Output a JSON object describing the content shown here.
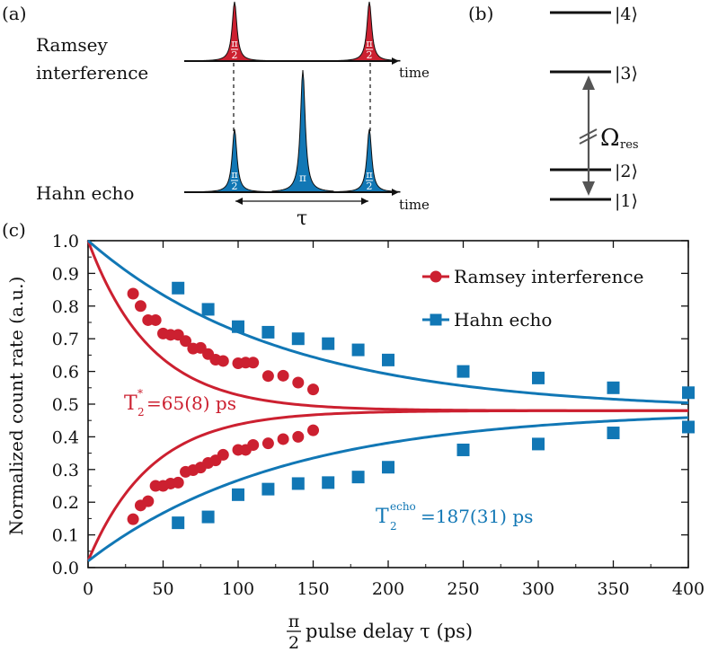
{
  "panel_labels": {
    "a": "(a)",
    "b": "(b)",
    "c": "(c)"
  },
  "panel_a": {
    "ramsey_label_1": "Ramsey",
    "ramsey_label_2": "interference",
    "hahn_label": "Hahn echo",
    "time_label": "time",
    "pulse_half": "π/2",
    "pulse_half_num": "π",
    "pulse_half_den": "2",
    "pulse_pi": "π",
    "tau": "τ",
    "red": "#cc2030",
    "blue": "#1177b5"
  },
  "panel_b": {
    "levels": [
      "|4⟩",
      "|3⟩",
      "|2⟩",
      "|1⟩"
    ],
    "omega": "Ω",
    "omega_sub": "res"
  },
  "chart_data": {
    "type": "scatter",
    "xlabel_prefix_num": "π",
    "xlabel_prefix_den": "2",
    "xlabel": "pulse delay τ (ps)",
    "ylabel": "Normalized count rate (a.u.)",
    "xlim": [
      0,
      400
    ],
    "ylim": [
      0.0,
      1.0
    ],
    "xticks": [
      0,
      50,
      100,
      150,
      200,
      250,
      300,
      350,
      400
    ],
    "yticks": [
      "0.0",
      "0.1",
      "0.2",
      "0.3",
      "0.4",
      "0.5",
      "0.6",
      "0.7",
      "0.8",
      "0.9",
      "1.0"
    ],
    "legend_position": "top-right",
    "series": [
      {
        "name": "Ramsey interference",
        "marker": "circle",
        "color": "#cc2030",
        "upper": {
          "x": [
            30,
            35,
            40,
            45,
            50,
            55,
            60,
            65,
            70,
            75,
            80,
            85,
            90,
            100,
            105,
            110,
            120,
            130,
            140,
            150
          ],
          "y": [
            0.838,
            0.8,
            0.757,
            0.757,
            0.716,
            0.712,
            0.712,
            0.693,
            0.67,
            0.672,
            0.653,
            0.636,
            0.632,
            0.625,
            0.627,
            0.627,
            0.586,
            0.587,
            0.566,
            0.545
          ]
        },
        "lower": {
          "x": [
            30,
            35,
            40,
            45,
            50,
            55,
            60,
            65,
            70,
            75,
            80,
            85,
            90,
            100,
            105,
            110,
            120,
            130,
            140,
            150
          ],
          "y": [
            0.148,
            0.19,
            0.203,
            0.25,
            0.25,
            0.257,
            0.26,
            0.293,
            0.298,
            0.306,
            0.32,
            0.328,
            0.345,
            0.36,
            0.36,
            0.375,
            0.38,
            0.393,
            0.4,
            0.42
          ]
        },
        "fit": {
          "asymptote": 0.48,
          "decay_ps": 42
        }
      },
      {
        "name": "Hahn echo",
        "marker": "square",
        "color": "#1177b5",
        "upper": {
          "x": [
            60,
            80,
            100,
            120,
            140,
            160,
            180,
            200,
            250,
            300,
            350,
            400
          ],
          "y": [
            0.855,
            0.79,
            0.737,
            0.72,
            0.7,
            0.685,
            0.666,
            0.635,
            0.6,
            0.58,
            0.55,
            0.535
          ]
        },
        "lower": {
          "x": [
            60,
            80,
            100,
            120,
            140,
            160,
            180,
            200,
            250,
            300,
            350,
            400
          ],
          "y": [
            0.137,
            0.155,
            0.223,
            0.24,
            0.257,
            0.26,
            0.277,
            0.307,
            0.36,
            0.378,
            0.412,
            0.43
          ]
        },
        "fit": {
          "asymptote": 0.48,
          "decay_ps": 130
        }
      }
    ],
    "annotations": {
      "ramsey_T": "T",
      "ramsey_sub": "2",
      "ramsey_sup": "*",
      "ramsey_value": "=65(8) ps",
      "hahn_T": "T",
      "hahn_sub": "2",
      "hahn_sup": "echo",
      "hahn_value": "=187(31) ps"
    }
  }
}
